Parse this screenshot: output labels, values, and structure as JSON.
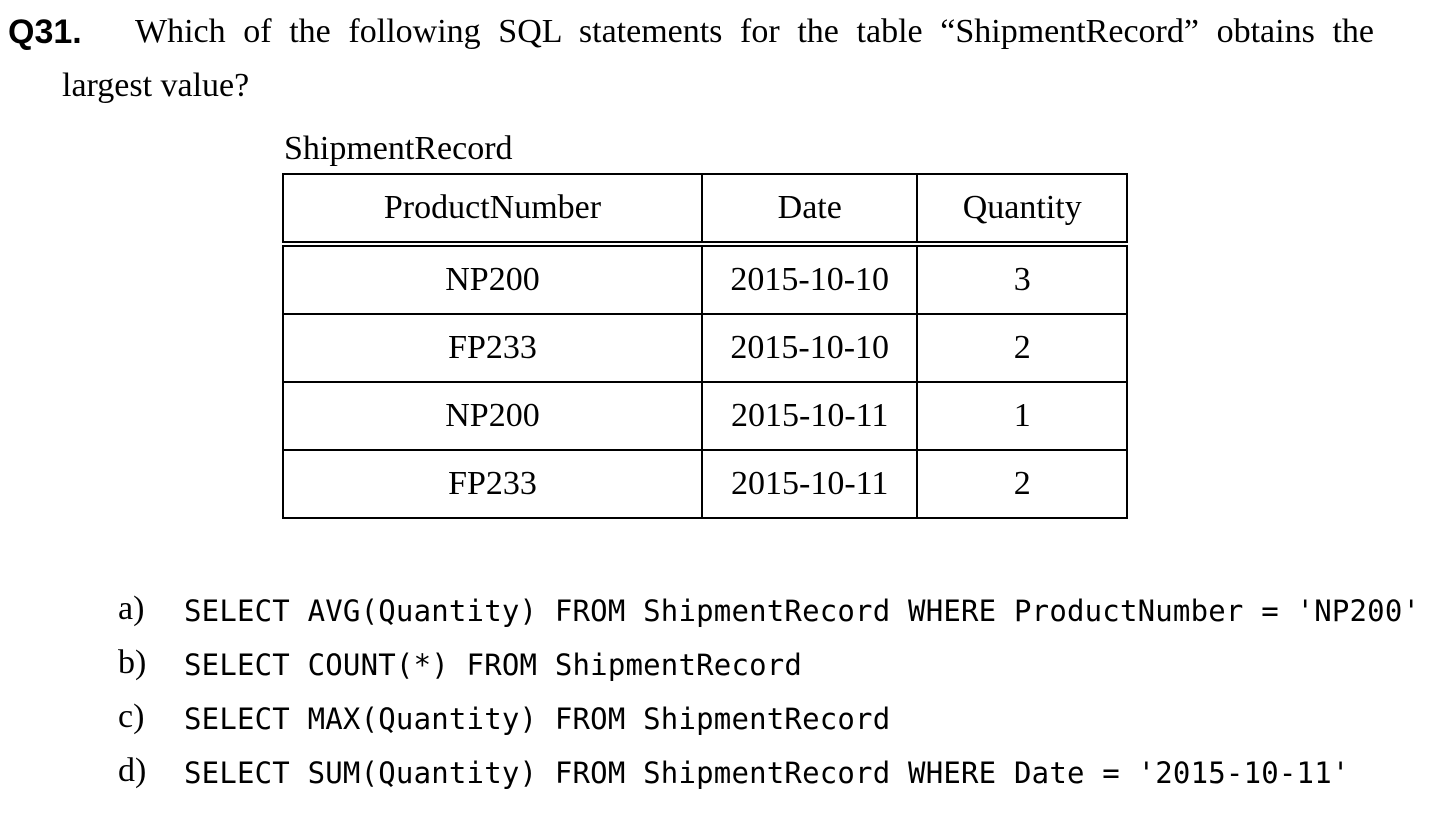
{
  "question": {
    "number": "Q31.",
    "text_line1": "Which of the following SQL statements for the table “ShipmentRecord” obtains the",
    "text_line2": "largest value?"
  },
  "table": {
    "caption": "ShipmentRecord",
    "headers": [
      "ProductNumber",
      "Date",
      "Quantity"
    ],
    "rows": [
      [
        "NP200",
        "2015-10-10",
        "3"
      ],
      [
        "FP233",
        "2015-10-10",
        "2"
      ],
      [
        "NP200",
        "2015-10-11",
        "1"
      ],
      [
        "FP233",
        "2015-10-11",
        "2"
      ]
    ]
  },
  "options": [
    {
      "label": "a)",
      "sql": "SELECT AVG(Quantity) FROM ShipmentRecord WHERE ProductNumber = 'NP200'"
    },
    {
      "label": "b)",
      "sql": "SELECT COUNT(*) FROM ShipmentRecord"
    },
    {
      "label": "c)",
      "sql": "SELECT MAX(Quantity) FROM ShipmentRecord"
    },
    {
      "label": "d)",
      "sql": "SELECT SUM(Quantity) FROM ShipmentRecord WHERE Date = '2015-10-11'"
    }
  ]
}
